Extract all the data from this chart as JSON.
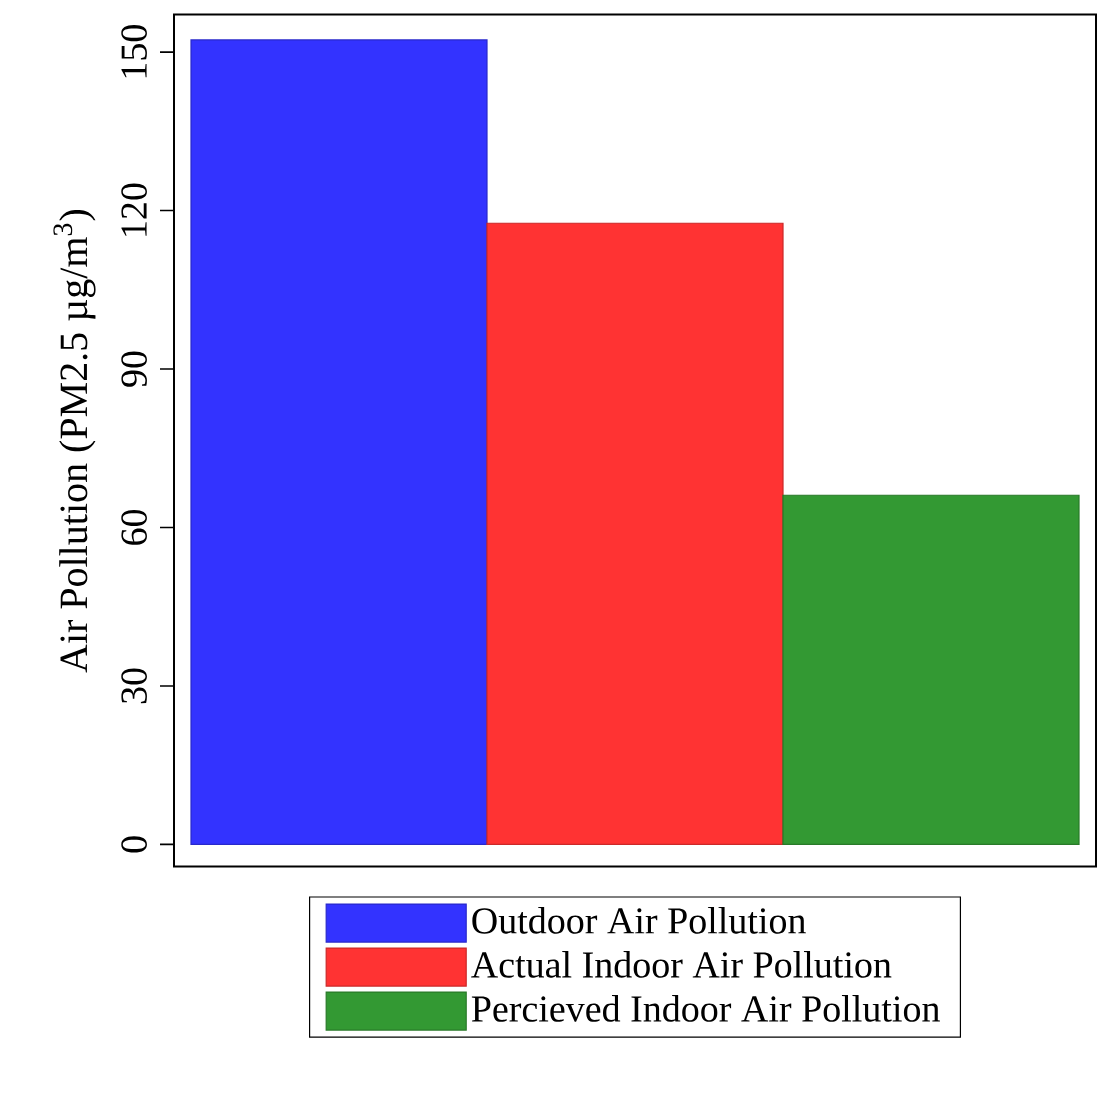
{
  "chart_data": {
    "type": "bar",
    "ylabel": "Air Pollution (PM2.5 µg/m$^{3}$)",
    "categories": [
      null
    ],
    "series": [
      {
        "name": "Outdoor Air Pollution",
        "color": "#3333ff",
        "values": [
          152.3
        ]
      },
      {
        "name": "Actual Indoor Air Pollution",
        "color": "#ff3333",
        "values": [
          117.6
        ]
      },
      {
        "name": "Percieved Indoor Air Pollution",
        "color": "#339933",
        "values": [
          66.1
        ]
      }
    ],
    "ylim": [
      -4.2,
      157.1
    ],
    "yticks": [
      0,
      30,
      60,
      90,
      120,
      150
    ],
    "legend": "bottom"
  }
}
